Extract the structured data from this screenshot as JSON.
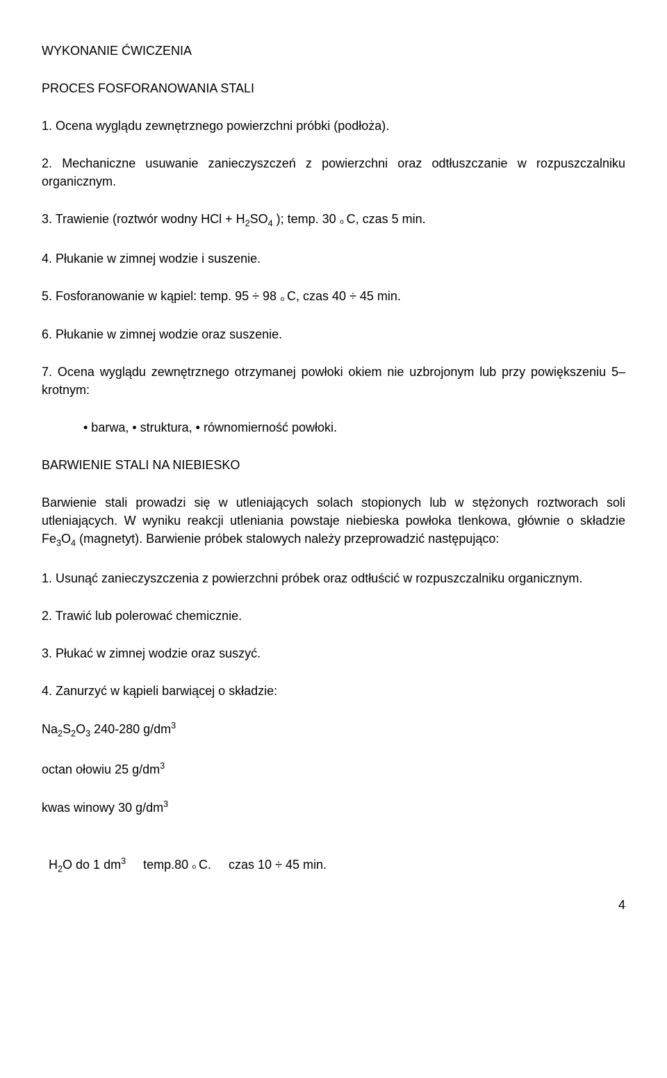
{
  "heading1": "WYKONANIE ĆWICZENIA",
  "heading2": "PROCES FOSFORANOWANIA STALI",
  "list1": {
    "i1": "1. Ocena wyglądu zewnętrznego powierzchni próbki (podłoża).",
    "i2": "2. Mechaniczne usuwanie zanieczyszczeń z powierzchni oraz odtłuszczanie w rozpuszczalniku organicznym.",
    "i3_a": "3. Trawienie (roztwór wodny HCl + H",
    "i3_b": "SO",
    "i3_c": " ); temp. 30 ",
    "i3_d": "C, czas 5 min.",
    "i4": "4. Płukanie w zimnej wodzie i suszenie.",
    "i5_a": "5. Fosforanowanie w kąpiel: temp. 95 ÷ 98 ",
    "i5_b": "C, czas 40 ÷ 45 min.",
    "i6": "6. Płukanie w zimnej wodzie oraz suszenie.",
    "i7": "7. Ocena wyglądu zewnętrznego otrzymanej powłoki okiem nie uzbrojonym lub przy powiększeniu 5–krotnym:",
    "i7_sub": "• barwa,   • struktura,   • równomierność powłoki."
  },
  "heading3": "BARWIENIE STALI NA NIEBIESKO",
  "para1_a": "Barwienie stali prowadzi się w utleniających solach stopionych lub w stężonych roztworach soli utleniających. W wyniku reakcji utleniania powstaje niebieska powłoka tlenkowa, głównie o składzie Fe",
  "para1_b": "O",
  "para1_c": " (magnetyt). Barwienie próbek stalowych należy przeprowadzić następująco:",
  "list2": {
    "i1": "1. Usunąć zanieczyszczenia z powierzchni próbek oraz odtłuścić w rozpuszczalniku organicznym.",
    "i2": "2. Trawić lub polerować chemicznie.",
    "i3": "3. Płukać w zimnej wodzie oraz suszyć.",
    "i4": "4. Zanurzyć w kąpieli barwiącej o składzie:"
  },
  "formula": {
    "f1_a": "Na",
    "f1_b": "S",
    "f1_c": "O",
    "f1_d": " 240-280 g/dm",
    "f2": "octan ołowiu 25 g/dm",
    "f3": "kwas winowy 30 g/dm",
    "f4_a": "H",
    "f4_b": "O do 1 dm",
    "f4_c": "     temp.80 ",
    "f4_d": "C.     czas 10 ÷ 45 min."
  },
  "sub2": "2",
  "sub3": "3",
  "sub4": "4",
  "sup3": "3",
  "pagenum": "4"
}
